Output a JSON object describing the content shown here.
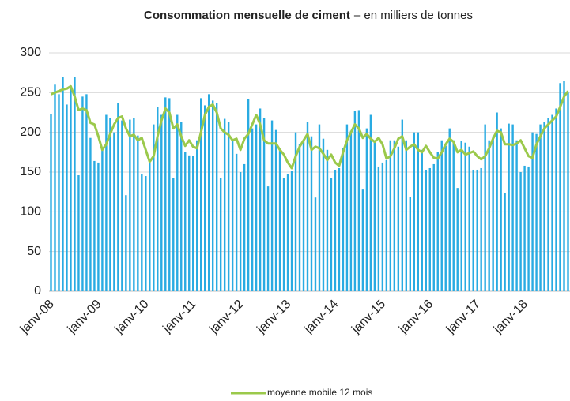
{
  "chart_data": {
    "type": "bar",
    "title": "Consommation mensuelle de ciment",
    "subtitle": "– en milliers de tonnes",
    "categories": [
      "janv-08",
      null,
      null,
      null,
      null,
      null,
      null,
      null,
      null,
      null,
      null,
      null,
      "janv-09",
      null,
      null,
      null,
      null,
      null,
      null,
      null,
      null,
      null,
      null,
      null,
      "janv-10",
      null,
      null,
      null,
      null,
      null,
      null,
      null,
      null,
      null,
      null,
      null,
      "janv-11",
      null,
      null,
      null,
      null,
      null,
      null,
      null,
      null,
      null,
      null,
      null,
      "janv-12",
      null,
      null,
      null,
      null,
      null,
      null,
      null,
      null,
      null,
      null,
      null,
      "janv-13",
      null,
      null,
      null,
      null,
      null,
      null,
      null,
      null,
      null,
      null,
      null,
      "janv-14",
      null,
      null,
      null,
      null,
      null,
      null,
      null,
      null,
      null,
      null,
      null,
      "janv-15",
      null,
      null,
      null,
      null,
      null,
      null,
      null,
      null,
      null,
      null,
      null,
      "janv-16",
      null,
      null,
      null,
      null,
      null,
      null,
      null,
      null,
      null,
      null,
      null,
      "janv-17",
      null,
      null,
      null,
      null,
      null,
      null,
      null,
      null,
      null,
      null,
      null,
      "janv-18",
      null,
      null,
      null,
      null,
      null,
      null,
      null,
      null,
      null,
      null,
      null
    ],
    "series": [
      {
        "type": "bar",
        "color": "#29abe2",
        "values": [
          223,
          260,
          248,
          270,
          235,
          257,
          270,
          146,
          245,
          248,
          193,
          164,
          162,
          180,
          222,
          218,
          200,
          237,
          215,
          121,
          216,
          218,
          196,
          147,
          145,
          162,
          210,
          232,
          222,
          244,
          243,
          143,
          222,
          213,
          175,
          171,
          170,
          190,
          243,
          234,
          248,
          240,
          237,
          143,
          217,
          213,
          190,
          173,
          150,
          160,
          242,
          205,
          210,
          230,
          218,
          132,
          215,
          203,
          178,
          143,
          148,
          152,
          200,
          185,
          190,
          213,
          195,
          118,
          210,
          192,
          178,
          143,
          153,
          155,
          180,
          210,
          202,
          227,
          228,
          128,
          205,
          222,
          190,
          157,
          162,
          165,
          190,
          190,
          182,
          216,
          190,
          119,
          200,
          200,
          178,
          153,
          155,
          160,
          175,
          190,
          183,
          205,
          190,
          130,
          189,
          187,
          182,
          153,
          153,
          155,
          210,
          190,
          195,
          225,
          205,
          124,
          211,
          210,
          190,
          150,
          158,
          157,
          200,
          198,
          210,
          213,
          218,
          222,
          230,
          262,
          265,
          250
        ]
      },
      {
        "type": "line",
        "name": "moyenne mobile 12 mois",
        "color": "#9bc94b",
        "values": [
          248,
          250,
          252,
          254,
          255,
          258,
          245,
          228,
          230,
          228,
          212,
          210,
          195,
          178,
          185,
          198,
          210,
          218,
          220,
          205,
          195,
          197,
          190,
          193,
          178,
          163,
          170,
          195,
          215,
          230,
          225,
          205,
          210,
          195,
          183,
          190,
          182,
          180,
          200,
          222,
          232,
          235,
          225,
          205,
          200,
          197,
          190,
          192,
          178,
          192,
          198,
          210,
          222,
          210,
          190,
          186,
          186,
          186,
          178,
          172,
          162,
          155,
          170,
          182,
          190,
          198,
          178,
          182,
          180,
          173,
          165,
          172,
          162,
          158,
          175,
          190,
          200,
          210,
          205,
          193,
          198,
          192,
          188,
          193,
          185,
          167,
          170,
          180,
          192,
          195,
          178,
          182,
          185,
          178,
          175,
          183,
          175,
          168,
          167,
          175,
          185,
          192,
          188,
          175,
          178,
          172,
          174,
          176,
          170,
          166,
          170,
          180,
          192,
          202,
          200,
          185,
          185,
          184,
          186,
          190,
          180,
          170,
          168,
          185,
          195,
          205,
          210,
          215,
          220,
          232,
          245,
          252
        ]
      }
    ],
    "ylim": [
      0,
      300
    ],
    "yticks": [
      0,
      50,
      100,
      150,
      200,
      250,
      300
    ],
    "grid": true,
    "legend": "bottom"
  }
}
